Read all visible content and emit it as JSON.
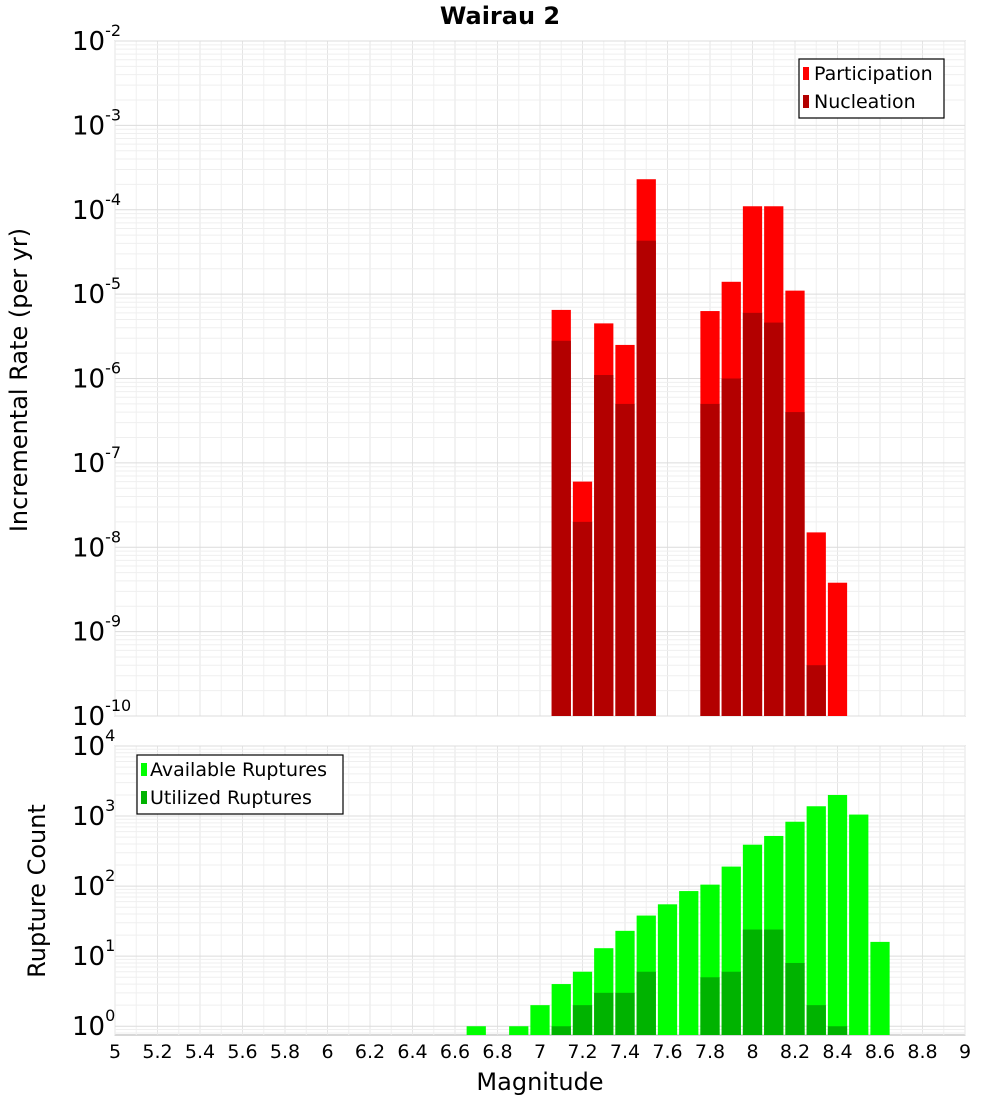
{
  "title": "Wairau 2",
  "xlabel": "Magnitude",
  "x_ticks": [
    "5",
    "5.2",
    "5.4",
    "5.6",
    "5.8",
    "6",
    "6.2",
    "6.4",
    "6.6",
    "6.8",
    "7",
    "7.2",
    "7.4",
    "7.6",
    "7.8",
    "8",
    "8.2",
    "8.4",
    "8.6",
    "8.8",
    "9"
  ],
  "chart_data": [
    {
      "type": "bar",
      "ylabel": "Incremental Rate (per yr)",
      "y_scale": "log",
      "xlim": [
        5,
        9
      ],
      "ylim": [
        1e-10,
        0.01
      ],
      "y_ticks": [
        {
          "value": 1e-10,
          "base": "10",
          "exp": "-10"
        },
        {
          "value": 1e-09,
          "base": "10",
          "exp": "-9"
        },
        {
          "value": 1e-08,
          "base": "10",
          "exp": "-8"
        },
        {
          "value": 1e-07,
          "base": "10",
          "exp": "-7"
        },
        {
          "value": 1e-06,
          "base": "10",
          "exp": "-6"
        },
        {
          "value": 1e-05,
          "base": "10",
          "exp": "-5"
        },
        {
          "value": 0.0001,
          "base": "10",
          "exp": "-4"
        },
        {
          "value": 0.001,
          "base": "10",
          "exp": "-3"
        },
        {
          "value": 0.01,
          "base": "10",
          "exp": "-2"
        }
      ],
      "legend_position": "top-right",
      "bin_width": 0.1,
      "x": [
        7.1,
        7.2,
        7.3,
        7.4,
        7.5,
        7.8,
        7.9,
        8.0,
        8.1,
        8.2,
        8.3,
        8.4
      ],
      "series": [
        {
          "name": "Participation",
          "color": "#ff0000",
          "values": [
            6.5e-06,
            6e-08,
            4.5e-06,
            2.5e-06,
            0.00023,
            6.3e-06,
            1.4e-05,
            0.00011,
            0.00011,
            1.1e-05,
            1.5e-08,
            3.8e-09
          ]
        },
        {
          "name": "Nucleation",
          "color": "#b30000",
          "values": [
            2.8e-06,
            2e-08,
            1.1e-06,
            5e-07,
            4.3e-05,
            5e-07,
            1e-06,
            6e-06,
            4.6e-06,
            4e-07,
            4e-10,
            null
          ]
        }
      ],
      "grid": true
    },
    {
      "type": "bar",
      "ylabel": "Rupture Count",
      "y_scale": "log",
      "xlim": [
        5,
        9
      ],
      "ylim": [
        0.75,
        10000
      ],
      "y_ticks": [
        {
          "value": 1,
          "base": "10",
          "exp": "0"
        },
        {
          "value": 10,
          "base": "10",
          "exp": "1"
        },
        {
          "value": 100,
          "base": "10",
          "exp": "2"
        },
        {
          "value": 1000,
          "base": "10",
          "exp": "3"
        },
        {
          "value": 10000,
          "base": "10",
          "exp": "4"
        }
      ],
      "legend_position": "top-left",
      "bin_width": 0.1,
      "x": [
        6.7,
        6.9,
        7.0,
        7.1,
        7.2,
        7.3,
        7.4,
        7.5,
        7.6,
        7.7,
        7.8,
        7.9,
        8.0,
        8.1,
        8.2,
        8.3,
        8.4,
        8.5,
        8.6
      ],
      "series": [
        {
          "name": "Available Ruptures",
          "color": "#00ff00",
          "values": [
            1,
            1,
            2,
            4,
            6,
            13,
            23,
            38,
            55,
            85,
            105,
            190,
            390,
            520,
            830,
            1380,
            2000,
            1050,
            16
          ]
        },
        {
          "name": "Utilized Ruptures",
          "color": "#00b300",
          "values": [
            null,
            null,
            null,
            1,
            2,
            3,
            3,
            6,
            null,
            null,
            5,
            6,
            24,
            24,
            8,
            2,
            1,
            null,
            null
          ]
        }
      ],
      "grid": true
    }
  ]
}
